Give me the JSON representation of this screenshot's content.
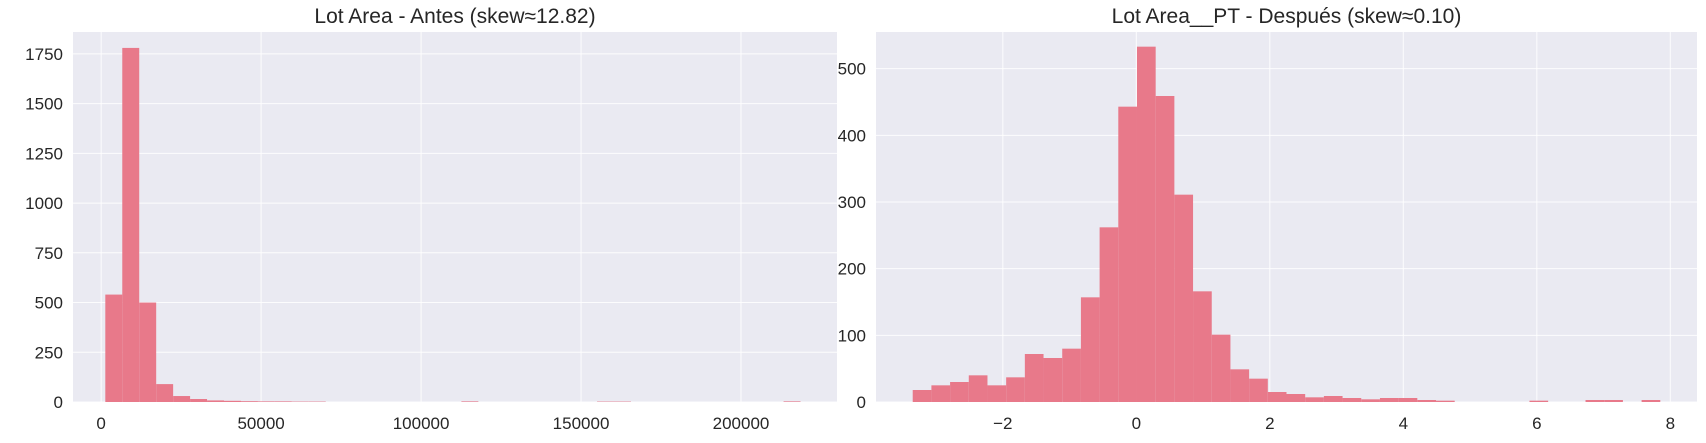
{
  "colors": {
    "axes_background": "#eaeaf2",
    "grid": "#ffffff",
    "bar": "#e8798a",
    "text": "#262626"
  },
  "chart_data": [
    {
      "type": "bar",
      "subtype": "histogram",
      "title": "Lot Area - Antes (skew≈12.82)",
      "xlabel": "",
      "ylabel": "",
      "xlim": [
        -8800,
        230000
      ],
      "ylim": [
        0,
        1860
      ],
      "xticks": [
        0,
        50000,
        100000,
        150000,
        200000
      ],
      "xtick_labels": [
        "0",
        "50000",
        "100000",
        "150000",
        "200000"
      ],
      "yticks": [
        0,
        250,
        500,
        750,
        1000,
        1250,
        1500,
        1750
      ],
      "ytick_labels": [
        "0",
        "250",
        "500",
        "750",
        "1000",
        "1250",
        "1500",
        "1750"
      ],
      "grid": true,
      "bin_edges": [
        1300,
        6600,
        11900,
        17200,
        22500,
        27800,
        33100,
        38400,
        43700,
        49000,
        54300,
        59600,
        64900,
        70200,
        75500,
        80800,
        86100,
        91400,
        96700,
        102000,
        107300,
        112600,
        117900,
        123200,
        128500,
        133800,
        139100,
        144400,
        149700,
        155000,
        160300,
        165600,
        170900,
        176200,
        181500,
        186800,
        192100,
        197400,
        202700,
        208000,
        213300,
        218600
      ],
      "values": [
        540,
        1780,
        500,
        90,
        30,
        15,
        8,
        6,
        4,
        3,
        3,
        2,
        2,
        0,
        0,
        0,
        0,
        0,
        0,
        0,
        0,
        3,
        0,
        0,
        0,
        0,
        0,
        0,
        0,
        2,
        2,
        0,
        0,
        0,
        0,
        0,
        0,
        0,
        0,
        0,
        3
      ]
    },
    {
      "type": "bar",
      "subtype": "histogram",
      "title": "Lot Area__PT - Después (skew≈0.10)",
      "xlabel": "",
      "ylabel": "",
      "xlim": [
        -3.9,
        8.4
      ],
      "ylim": [
        0,
        555
      ],
      "xticks": [
        -2,
        0,
        2,
        4,
        6,
        8
      ],
      "xtick_labels": [
        "−2",
        "0",
        "2",
        "4",
        "6",
        "8"
      ],
      "yticks": [
        0,
        100,
        200,
        300,
        400,
        500
      ],
      "ytick_labels": [
        "0",
        "100",
        "200",
        "300",
        "400",
        "500"
      ],
      "grid": true,
      "bin_edges": [
        -3.35,
        -3.07,
        -2.79,
        -2.51,
        -2.23,
        -1.95,
        -1.67,
        -1.39,
        -1.11,
        -0.83,
        -0.55,
        -0.27,
        0.01,
        0.29,
        0.57,
        0.85,
        1.13,
        1.41,
        1.69,
        1.97,
        2.25,
        2.53,
        2.81,
        3.09,
        3.37,
        3.65,
        3.93,
        4.21,
        4.49,
        4.77,
        5.05,
        5.33,
        5.61,
        5.89,
        6.17,
        6.45,
        6.73,
        7.01,
        7.29,
        7.57,
        7.85
      ],
      "values": [
        18,
        25,
        30,
        40,
        25,
        37,
        72,
        66,
        80,
        157,
        262,
        443,
        533,
        459,
        311,
        166,
        101,
        49,
        35,
        15,
        12,
        7,
        9,
        6,
        4,
        6,
        6,
        3,
        2,
        0,
        0,
        0,
        0,
        2,
        0,
        0,
        3,
        3,
        0,
        3
      ]
    }
  ]
}
